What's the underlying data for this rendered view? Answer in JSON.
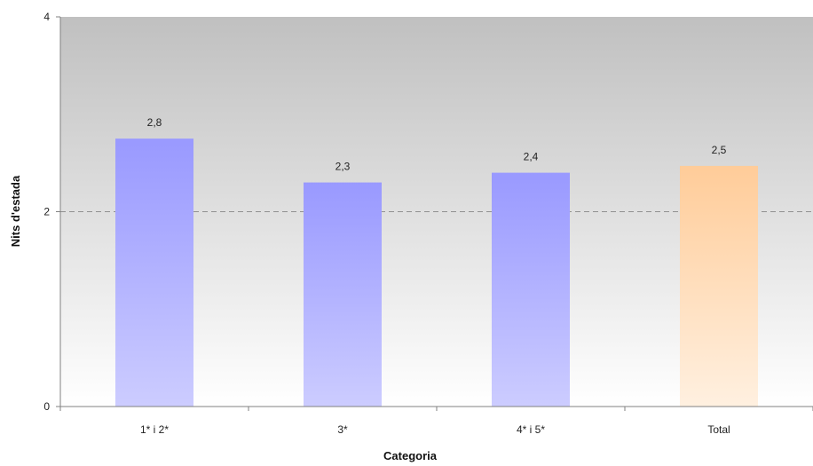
{
  "chart_data": {
    "type": "bar",
    "categories": [
      "1* i 2*",
      "3*",
      "4* i 5*",
      "Total"
    ],
    "values": [
      2.75,
      2.3,
      2.4,
      2.47
    ],
    "value_labels": [
      "2,8",
      "2,3",
      "2,4",
      "2,5"
    ],
    "xlabel": "Categoria",
    "ylabel": "Nits d'estada",
    "ylim": [
      0,
      4
    ],
    "yticks": [
      0,
      2,
      4
    ],
    "ytick_labels": [
      "0",
      "2",
      "4"
    ],
    "grid": "dashed line at 2",
    "legend": "none",
    "colors": {
      "series_top": "#9999ff",
      "series_bottom": "#ccccff",
      "total_top": "#ffcc99",
      "total_bottom": "#fff0e0",
      "background_top": "#c0c0c0",
      "background_bottom": "#ffffff"
    }
  }
}
